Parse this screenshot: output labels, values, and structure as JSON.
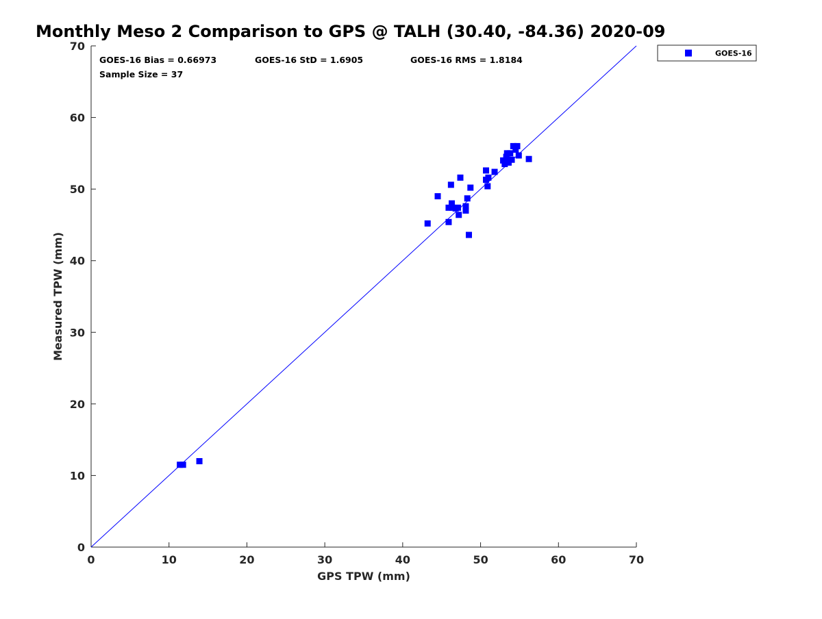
{
  "chart_data": {
    "type": "scatter",
    "title": "Monthly Meso 2 Comparison to GPS @ TALH (30.40, -84.36) 2020-09",
    "xlabel": "GPS TPW (mm)",
    "ylabel": "Measured TPW (mm)",
    "xlim": [
      0,
      70
    ],
    "ylim": [
      0,
      70
    ],
    "xticks": [
      0,
      10,
      20,
      30,
      40,
      50,
      60,
      70
    ],
    "yticks": [
      0,
      10,
      20,
      30,
      40,
      50,
      60,
      70
    ],
    "grid": false,
    "legend_position": "top-right outside",
    "reference_line": {
      "from": [
        0,
        0
      ],
      "to": [
        70,
        70
      ],
      "color": "#0000ff"
    },
    "stats": {
      "bias": "GOES-16 Bias = 0.66973",
      "std": "GOES-16 StD = 1.6905",
      "rms": "GOES-16 RMS = 1.8184",
      "sample": "Sample Size = 37"
    },
    "series": [
      {
        "name": "GOES-16",
        "color": "#0000ff",
        "marker": "square",
        "points": [
          [
            11.4,
            11.5
          ],
          [
            11.8,
            11.5
          ],
          [
            13.9,
            12.0
          ],
          [
            43.2,
            45.2
          ],
          [
            44.5,
            49.0
          ],
          [
            45.9,
            45.4
          ],
          [
            45.9,
            47.4
          ],
          [
            46.2,
            50.6
          ],
          [
            46.3,
            48.0
          ],
          [
            46.4,
            47.4
          ],
          [
            46.8,
            47.3
          ],
          [
            47.1,
            47.4
          ],
          [
            47.2,
            46.4
          ],
          [
            47.4,
            51.6
          ],
          [
            48.1,
            47.0
          ],
          [
            48.1,
            47.6
          ],
          [
            48.3,
            48.7
          ],
          [
            48.5,
            43.6
          ],
          [
            48.7,
            50.2
          ],
          [
            50.7,
            51.3
          ],
          [
            50.7,
            52.6
          ],
          [
            50.9,
            50.4
          ],
          [
            51.0,
            51.6
          ],
          [
            51.8,
            52.4
          ],
          [
            52.9,
            54.0
          ],
          [
            53.1,
            53.5
          ],
          [
            53.3,
            54.5
          ],
          [
            53.4,
            55.0
          ],
          [
            53.5,
            54.1
          ],
          [
            53.6,
            53.7
          ],
          [
            53.8,
            55.0
          ],
          [
            54.0,
            54.1
          ],
          [
            54.2,
            56.0
          ],
          [
            54.5,
            55.5
          ],
          [
            54.7,
            56.0
          ],
          [
            54.9,
            54.7
          ],
          [
            56.2,
            54.2
          ]
        ]
      }
    ]
  }
}
